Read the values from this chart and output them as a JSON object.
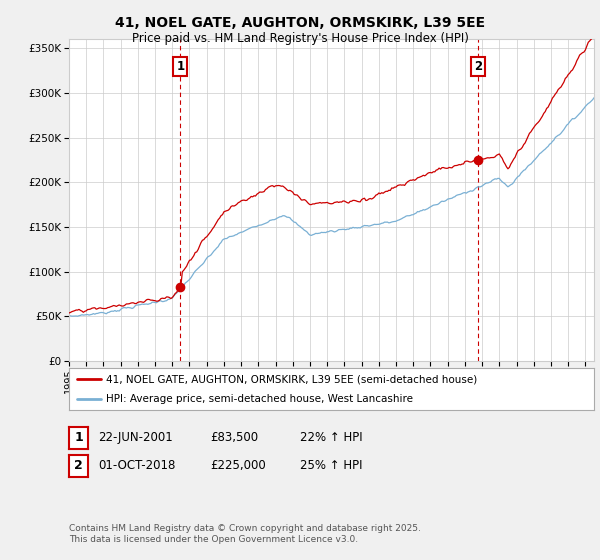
{
  "title_line1": "41, NOEL GATE, AUGHTON, ORMSKIRK, L39 5EE",
  "title_line2": "Price paid vs. HM Land Registry's House Price Index (HPI)",
  "ylim": [
    0,
    360000
  ],
  "yticks": [
    0,
    50000,
    100000,
    150000,
    200000,
    250000,
    300000,
    350000
  ],
  "ytick_labels": [
    "£0",
    "£50K",
    "£100K",
    "£150K",
    "£200K",
    "£250K",
    "£300K",
    "£350K"
  ],
  "background_color": "#f0f0f0",
  "plot_bg_color": "#ffffff",
  "grid_color": "#cccccc",
  "red_line_color": "#cc0000",
  "blue_line_color": "#7ab0d4",
  "vline_color": "#cc0000",
  "sale1_date_num": 2001.47,
  "sale2_date_num": 2018.75,
  "sale1_price": 83500,
  "sale2_price": 225000,
  "legend_label_red": "41, NOEL GATE, AUGHTON, ORMSKIRK, L39 5EE (semi-detached house)",
  "legend_label_blue": "HPI: Average price, semi-detached house, West Lancashire",
  "annotation1_label": "1",
  "annotation2_label": "2",
  "table_row1": [
    "1",
    "22-JUN-2001",
    "£83,500",
    "22% ↑ HPI"
  ],
  "table_row2": [
    "2",
    "01-OCT-2018",
    "£225,000",
    "25% ↑ HPI"
  ],
  "footer": "Contains HM Land Registry data © Crown copyright and database right 2025.\nThis data is licensed under the Open Government Licence v3.0.",
  "xmin": 1995.0,
  "xmax": 2025.5
}
